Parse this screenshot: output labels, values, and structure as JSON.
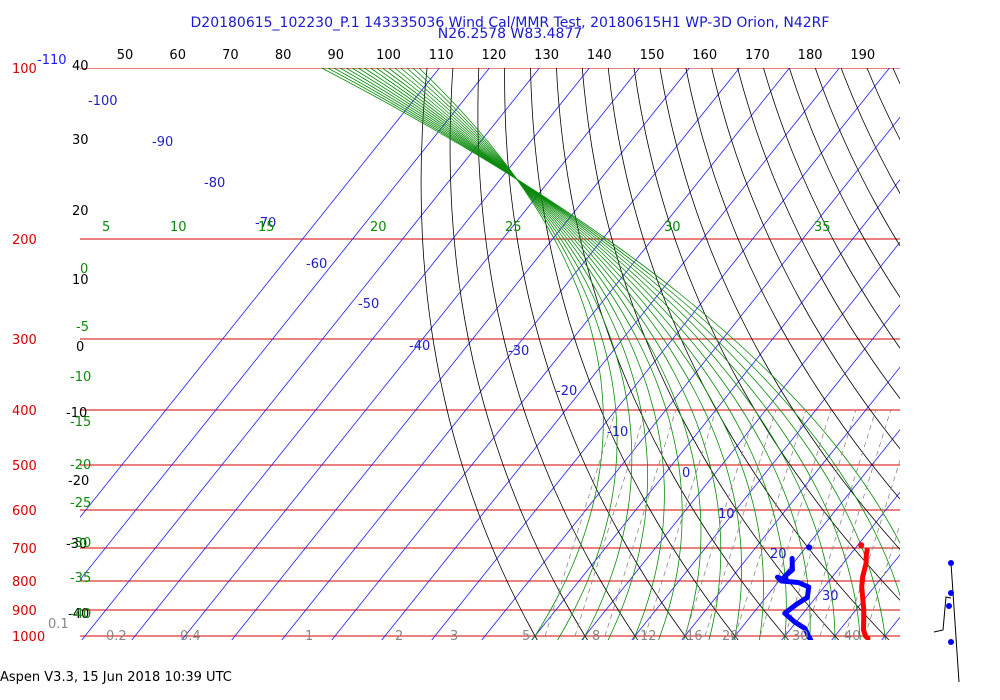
{
  "header": {
    "line1": "D20180615_102230_P.1 143335036 Wind Cal/MMR Test, 20180615H1 WP-3D Orion, N42RF",
    "line2": "N26.2578 W83.4877"
  },
  "footer": {
    "text": "Aspen V3.3, 15 Jun 2018  10:39 UTC"
  },
  "colors": {
    "isobar": "#d40000",
    "isotherm": "#1a1aff",
    "dry_adiabat": "#000000",
    "moist_adiabat": "#0a8a0a",
    "mixing_ratio": "#888888",
    "temperature": "#ff0000",
    "dewpoint": "#0000ff"
  },
  "chart_data": {
    "type": "skew-t",
    "pressure_labels": [
      "100",
      "200",
      "300",
      "400",
      "500",
      "600",
      "700",
      "800",
      "900",
      "1000"
    ],
    "pressures_hpa": [
      100,
      200,
      300,
      400,
      500,
      600,
      700,
      800,
      900,
      1000
    ],
    "temperature_labels_top": [
      "50",
      "60",
      "70",
      "80",
      "90",
      "100",
      "110",
      "120",
      "130",
      "140",
      "150",
      "160",
      "170",
      "180",
      "190"
    ],
    "left_axis_labels": [
      "-110",
      "40",
      "30",
      "20",
      "10",
      "0",
      "-10",
      "-20",
      "-30",
      "-40"
    ],
    "isotherm_labels": [
      "-100",
      "-90",
      "-80",
      "-70",
      "-60",
      "-50",
      "-40",
      "-30",
      "-20",
      "-10",
      "0",
      "10",
      "20",
      "30"
    ],
    "moist_adiabat_labels": [
      "5",
      "10",
      "15",
      "20",
      "25",
      "30",
      "35",
      "0",
      "-5",
      "-10",
      "-15",
      "-20",
      "-25",
      "-30",
      "-35",
      "-40"
    ],
    "mixing_ratio_labels": [
      "0.1",
      "0.2",
      "0.4",
      "1",
      "2",
      "3",
      "5",
      "8",
      "12",
      "16",
      "20",
      "30",
      "40"
    ],
    "temperature_profile": [
      {
        "p": 706,
        "t": 12.7
      },
      {
        "p": 720,
        "t": 13.3
      },
      {
        "p": 745,
        "t": 14.6
      },
      {
        "p": 785,
        "t": 16.0
      },
      {
        "p": 820,
        "t": 17.5
      },
      {
        "p": 860,
        "t": 19.6
      },
      {
        "p": 900,
        "t": 21.6
      },
      {
        "p": 940,
        "t": 23.3
      },
      {
        "p": 975,
        "t": 24.7
      },
      {
        "p": 1000,
        "t": 26.1
      },
      {
        "p": 1010,
        "t": 27.0
      }
    ],
    "dewpoint_profile": [
      {
        "p": 730,
        "td": -1.0
      },
      {
        "p": 765,
        "td": 0.9
      },
      {
        "p": 785,
        "td": 0.4
      },
      {
        "p": 800,
        "td": 1.6
      },
      {
        "p": 788,
        "td": -0.9
      },
      {
        "p": 800,
        "td": 0.5
      },
      {
        "p": 805,
        "td": 4.1
      },
      {
        "p": 820,
        "td": 6.9
      },
      {
        "p": 855,
        "td": 8.3
      },
      {
        "p": 880,
        "td": 7.2
      },
      {
        "p": 912,
        "td": 6.3
      },
      {
        "p": 945,
        "td": 9.7
      },
      {
        "p": 970,
        "td": 12.8
      },
      {
        "p": 1000,
        "td": 14.7
      },
      {
        "p": 1015,
        "td": 15.7
      }
    ]
  }
}
